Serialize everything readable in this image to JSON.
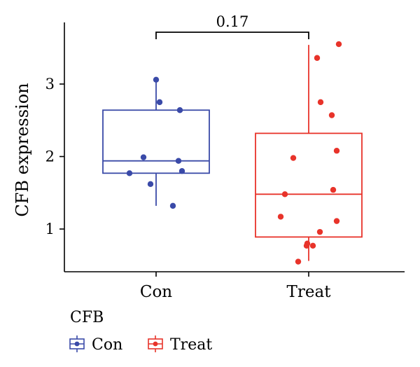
{
  "chart_data": {
    "type": "box",
    "ylabel": "CFB expression",
    "xlabel": "",
    "categories": [
      "Con",
      "Treat"
    ],
    "y_ticks": [
      1,
      2,
      3
    ],
    "ylim": [
      0.4,
      3.75
    ],
    "colors": {
      "Con": "#3a4aa8",
      "Treat": "#e8332a"
    },
    "annotation": {
      "label": "0.17",
      "between": [
        "Con",
        "Treat"
      ]
    },
    "legend": {
      "title": "CFB",
      "entries": [
        "Con",
        "Treat"
      ],
      "position": "bottom-left"
    },
    "boxes": [
      {
        "group": "Con",
        "q1": 1.77,
        "median": 1.94,
        "q3": 2.64,
        "whisker_low": 1.32,
        "whisker_high": 3.06,
        "points": [
          {
            "x": 0.0,
            "y": 3.06
          },
          {
            "x": 0.05,
            "y": 2.75
          },
          {
            "x": 0.34,
            "y": 2.64
          },
          {
            "x": -0.18,
            "y": 1.99
          },
          {
            "x": 0.32,
            "y": 1.94
          },
          {
            "x": 0.37,
            "y": 1.8
          },
          {
            "x": -0.38,
            "y": 1.77
          },
          {
            "x": -0.08,
            "y": 1.62
          },
          {
            "x": 0.24,
            "y": 1.32
          }
        ]
      },
      {
        "group": "Treat",
        "q1": 0.89,
        "median": 1.48,
        "q3": 2.32,
        "whisker_low": 0.56,
        "whisker_high": 3.54,
        "points": [
          {
            "x": 0.43,
            "y": 3.55
          },
          {
            "x": 0.12,
            "y": 3.36
          },
          {
            "x": 0.17,
            "y": 2.75
          },
          {
            "x": 0.33,
            "y": 2.57
          },
          {
            "x": 0.4,
            "y": 2.08
          },
          {
            "x": -0.22,
            "y": 1.98
          },
          {
            "x": 0.35,
            "y": 1.54
          },
          {
            "x": -0.34,
            "y": 1.48
          },
          {
            "x": -0.4,
            "y": 1.17
          },
          {
            "x": 0.4,
            "y": 1.11
          },
          {
            "x": 0.16,
            "y": 0.96
          },
          {
            "x": -0.02,
            "y": 0.8
          },
          {
            "x": -0.03,
            "y": 0.77
          },
          {
            "x": 0.06,
            "y": 0.77
          },
          {
            "x": -0.15,
            "y": 0.55
          }
        ]
      }
    ]
  }
}
